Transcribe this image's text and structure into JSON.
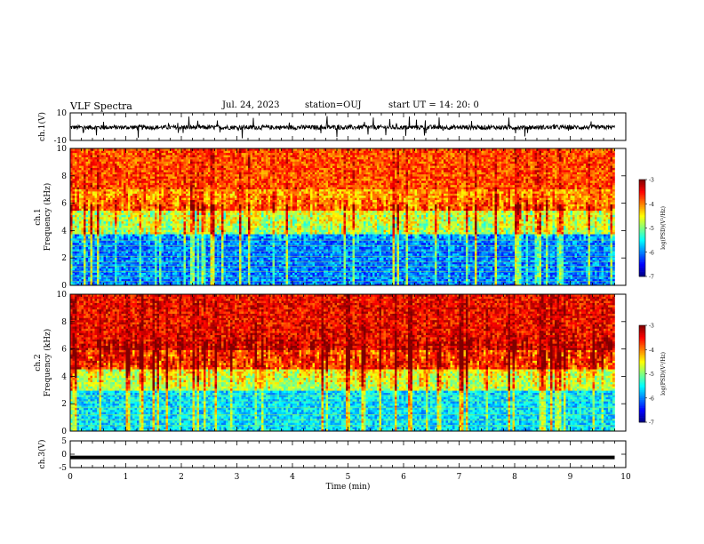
{
  "header": {
    "title": "VLF Spectra",
    "date": "Jul. 24, 2023",
    "station": "station=OUJ",
    "start": "start UT =  14: 20: 0"
  },
  "chart_data": [
    {
      "type": "line",
      "ylabel": "ch.1(V)",
      "ylim": [
        -10,
        10
      ],
      "y_ticks": [
        "10",
        "-10"
      ],
      "xlim": [
        0,
        10
      ],
      "description_values": {
        "baseline": -0.5,
        "typical_range": [
          -3,
          2
        ]
      },
      "color": "#000000"
    },
    {
      "type": "heatmap",
      "ylabel": "ch.1\nFrequency (kHz)",
      "ylim": [
        0,
        10
      ],
      "y_ticks": [
        "0",
        "2",
        "4",
        "6",
        "8",
        "10"
      ],
      "xlim": [
        0,
        10
      ],
      "data_extent_x": [
        0,
        9.8
      ],
      "colorbar": {
        "label": "log(PSD)(V²/Hz)",
        "range": [
          -7,
          -3
        ],
        "ticks": [
          "-3",
          "-4",
          "-5",
          "-6",
          "-7"
        ]
      },
      "bands": [
        {
          "range": [
            0,
            3.8
          ],
          "level": -6.0
        },
        {
          "range": [
            3.8,
            5.5
          ],
          "level": -5.0
        },
        {
          "range": [
            5.5,
            7.0
          ],
          "level": -4.2
        },
        {
          "range": [
            7.0,
            10
          ],
          "level": -3.8
        }
      ]
    },
    {
      "type": "heatmap",
      "ylabel": "ch.2\nFrequency (kHz)",
      "ylim": [
        0,
        10
      ],
      "y_ticks": [
        "0",
        "2",
        "4",
        "6",
        "8",
        "10"
      ],
      "xlim": [
        0,
        10
      ],
      "data_extent_x": [
        0,
        9.8
      ],
      "colorbar": {
        "label": "log(PSD)(V²/Hz)",
        "range": [
          -7,
          -3
        ],
        "ticks": [
          "-3",
          "-4",
          "-5",
          "-6",
          "-7"
        ]
      },
      "bands": [
        {
          "range": [
            0,
            3.0
          ],
          "level": -5.6
        },
        {
          "range": [
            3.0,
            4.5
          ],
          "level": -4.8
        },
        {
          "range": [
            4.5,
            6.0
          ],
          "level": -4.0
        },
        {
          "range": [
            6.0,
            10
          ],
          "level": -3.5
        }
      ]
    },
    {
      "type": "line",
      "ylabel": "ch.3(V)",
      "ylim": [
        -5,
        5
      ],
      "y_ticks": [
        "5",
        "0",
        "-5"
      ],
      "xlim": [
        0,
        10
      ],
      "values_constant": -1.2,
      "color": "#000000"
    }
  ],
  "xaxis": {
    "label": "Time (min)",
    "ticks": [
      "0",
      "1",
      "2",
      "3",
      "4",
      "5",
      "6",
      "7",
      "8",
      "9",
      "10"
    ]
  }
}
